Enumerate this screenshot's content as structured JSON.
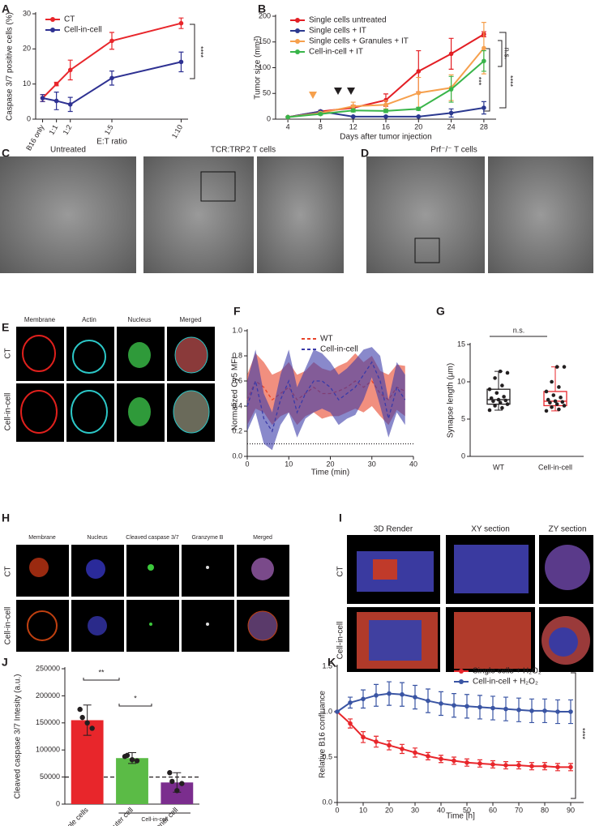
{
  "chart_data": [
    {
      "panel": "A",
      "type": "line",
      "x": [
        0,
        1,
        2,
        5,
        10
      ],
      "xlim": [
        -0.5,
        10.5
      ],
      "xticks": [
        {
          "value": 0,
          "label": "B16 only"
        },
        {
          "value": 1,
          "label": "1:1"
        },
        {
          "value": 2,
          "label": "1:2"
        },
        {
          "value": 5,
          "label": "1:5"
        },
        {
          "value": 10,
          "label": "1:10"
        }
      ],
      "ylim": [
        0,
        30
      ],
      "yticks": [
        0,
        10,
        20,
        30
      ],
      "xlabel": "E:T ratio",
      "ylabel": "Caspase 3/7 positive cells (%)",
      "markers": true,
      "error_style": "bars",
      "series": [
        {
          "name": "CT",
          "color": "#e8262b",
          "values": [
            6,
            10,
            14,
            22.3,
            27.3
          ],
          "errors": [
            1,
            0.5,
            2.8,
            2.4,
            1.5
          ]
        },
        {
          "name": "Cell-in-cell",
          "color": "#2e3192",
          "values": [
            6,
            5.2,
            4.2,
            11.7,
            16.3
          ],
          "errors": [
            1,
            2.5,
            2,
            2,
            2.8
          ]
        }
      ],
      "annotations": [
        "****"
      ]
    },
    {
      "panel": "B",
      "type": "line",
      "x": [
        4,
        8,
        12,
        16,
        20,
        24,
        28
      ],
      "xlim": [
        2.5,
        29.5
      ],
      "xticks": [
        4,
        8,
        12,
        16,
        20,
        24,
        28
      ],
      "ylim": [
        0,
        200
      ],
      "yticks": [
        0,
        50,
        100,
        150,
        200
      ],
      "xlabel": "Days after tumor injection",
      "ylabel": "Tumor size (mm²)",
      "markers": true,
      "error_style": "bars",
      "series": [
        {
          "name": "Single cells untreated",
          "color": "#e31e24",
          "values": [
            4,
            15,
            22,
            37,
            93,
            127,
            165
          ],
          "errors": [
            0,
            2,
            5,
            12,
            40,
            30,
            5
          ]
        },
        {
          "name": "Single cells + IT",
          "color": "#2b3990",
          "values": [
            4,
            15,
            5,
            5,
            5,
            12,
            22
          ],
          "errors": [
            0,
            2,
            1,
            1,
            1,
            8,
            12
          ]
        },
        {
          "name": "Single cells + Granules + IT",
          "color": "#f6a04d",
          "values": [
            4,
            12,
            25,
            28,
            51,
            61,
            138
          ],
          "errors": [
            0,
            2,
            8,
            8,
            30,
            25,
            50
          ]
        },
        {
          "name": "Cell-in-cell + IT",
          "color": "#39b54a",
          "values": [
            4,
            10,
            17,
            16,
            20,
            58,
            113
          ],
          "errors": [
            0,
            2,
            3,
            3,
            3,
            25,
            20
          ]
        }
      ],
      "annotations": [
        "n.s.",
        "****",
        "***"
      ]
    },
    {
      "panel": "F",
      "type": "line",
      "x": [
        0,
        2,
        4,
        6,
        8,
        10,
        12,
        14,
        16,
        18,
        20,
        22,
        24,
        26,
        28,
        30,
        32,
        34,
        36,
        38
      ],
      "xlim": [
        0,
        40
      ],
      "xticks": [
        0,
        10,
        20,
        30,
        40
      ],
      "ylim": [
        0,
        1
      ],
      "yticks": [
        {
          "value": 0,
          "label": "0.0"
        },
        0.2,
        0.4,
        0.6,
        0.8,
        {
          "value": 1,
          "label": "1.0"
        }
      ],
      "xlabel": "Time (min)",
      "ylabel": "Normalized Cy5 MFI",
      "markers": false,
      "dashed": true,
      "error_style": "band",
      "hline": 0.1,
      "series": [
        {
          "name": "WT",
          "color": "#e8442a",
          "values": [
            0.45,
            0.6,
            0.55,
            0.45,
            0.5,
            0.55,
            0.45,
            0.5,
            0.55,
            0.5,
            0.5,
            0.52,
            0.55,
            0.6,
            0.55,
            0.6,
            0.5,
            0.45,
            0.55,
            0.52
          ],
          "errors": [
            0.2,
            0.22,
            0.2,
            0.2,
            0.18,
            0.2,
            0.2,
            0.18,
            0.2,
            0.2,
            0.18,
            0.2,
            0.2,
            0.22,
            0.2,
            0.2,
            0.18,
            0.2,
            0.18,
            0.2
          ]
        },
        {
          "name": "Cell-in-cell",
          "color": "#3a3aa8",
          "values": [
            0.4,
            0.6,
            0.3,
            0.2,
            0.45,
            0.6,
            0.35,
            0.5,
            0.6,
            0.6,
            0.55,
            0.45,
            0.5,
            0.55,
            0.65,
            0.75,
            0.6,
            0.3,
            0.55,
            0.45
          ],
          "errors": [
            0.2,
            0.25,
            0.2,
            0.15,
            0.2,
            0.25,
            0.2,
            0.2,
            0.25,
            0.22,
            0.2,
            0.2,
            0.2,
            0.22,
            0.2,
            0.12,
            0.2,
            0.15,
            0.2,
            0.2
          ]
        }
      ]
    },
    {
      "panel": "G",
      "type": "box",
      "categories": [
        "WT",
        "Cell-in-cell"
      ],
      "ylim": [
        0,
        15
      ],
      "yticks": [
        0,
        5,
        10,
        15
      ],
      "ylabel": "Synapse length (μm)",
      "colors": [
        "#231f20",
        "#e8262b"
      ],
      "boxes": [
        {
          "min": 6.2,
          "q1": 7,
          "median": 7.6,
          "q3": 9,
          "max": 11.4,
          "points": [
            6.2,
            6.5,
            6.8,
            7,
            7.2,
            7.4,
            7.5,
            7.6,
            7.8,
            8,
            8.5,
            9,
            9.5,
            10.5,
            11.2,
            11.4
          ]
        },
        {
          "min": 6.1,
          "q1": 6.8,
          "median": 7.4,
          "q3": 8.7,
          "max": 12,
          "points": [
            6.1,
            6.3,
            6.6,
            6.8,
            7,
            7.2,
            7.3,
            7.4,
            7.6,
            7.9,
            8.2,
            8.7,
            9.3,
            10,
            12,
            12
          ]
        }
      ],
      "annotations": [
        "n.s."
      ]
    },
    {
      "panel": "J",
      "type": "bar",
      "categories": [
        "Single cells",
        "Outer cell",
        "Inner cell"
      ],
      "values": [
        155000,
        85000,
        40000
      ],
      "errors": [
        28000,
        10000,
        18000
      ],
      "colors": [
        "#e8262b",
        "#5bbb46",
        "#7b2d8e"
      ],
      "points": [
        [
          175000,
          140000,
          150000,
          160000
        ],
        [
          88000,
          80000,
          82000,
          90000
        ],
        [
          58000,
          38000,
          25000,
          42000
        ]
      ],
      "ylim": [
        0,
        250000
      ],
      "yticks": [
        0,
        50000,
        100000,
        150000,
        200000,
        250000
      ],
      "hline": 50000,
      "ylabel": "Cleaved caspase 3/7 Intesity (a.u.)",
      "group_label": "Cell-in-cell",
      "annotations": [
        "**",
        "*"
      ]
    },
    {
      "panel": "K",
      "type": "line",
      "x": [
        0,
        5,
        10,
        15,
        20,
        25,
        30,
        35,
        40,
        45,
        50,
        55,
        60,
        65,
        70,
        75,
        80,
        85,
        90
      ],
      "xlim": [
        0,
        95
      ],
      "xticks": [
        0,
        10,
        20,
        30,
        40,
        50,
        60,
        70,
        80,
        90
      ],
      "ylim": [
        0,
        1.5
      ],
      "yticks": [
        {
          "value": 0,
          "label": "0.0"
        },
        0.5,
        {
          "value": 1,
          "label": "1.0"
        },
        1.5
      ],
      "xlabel": "Time [h]",
      "ylabel": "Relative B16 confluance",
      "markers": true,
      "error_style": "bars",
      "series": [
        {
          "name": "Single cells + H₂O₂",
          "color": "#e8262b",
          "values": [
            1,
            0.87,
            0.72,
            0.67,
            0.63,
            0.59,
            0.55,
            0.51,
            0.48,
            0.46,
            0.44,
            0.43,
            0.42,
            0.41,
            0.41,
            0.4,
            0.4,
            0.39,
            0.39
          ],
          "errors": [
            0,
            0.05,
            0.06,
            0.06,
            0.05,
            0.05,
            0.05,
            0.04,
            0.04,
            0.04,
            0.04,
            0.04,
            0.04,
            0.04,
            0.04,
            0.04,
            0.04,
            0.04,
            0.04
          ]
        },
        {
          "name": "Cell-in-cell + H₂O₂",
          "color": "#3a55a4",
          "values": [
            1,
            1.1,
            1.14,
            1.18,
            1.2,
            1.19,
            1.16,
            1.12,
            1.09,
            1.07,
            1.06,
            1.05,
            1.04,
            1.03,
            1.02,
            1.01,
            1.01,
            1,
            1
          ],
          "errors": [
            0,
            0.06,
            0.1,
            0.12,
            0.13,
            0.13,
            0.13,
            0.13,
            0.13,
            0.13,
            0.13,
            0.13,
            0.13,
            0.13,
            0.13,
            0.13,
            0.13,
            0.13,
            0.13
          ]
        }
      ],
      "annotations": [
        "****"
      ]
    }
  ],
  "images": {
    "C": {
      "panel": "C",
      "labels": [
        "Untreated",
        "TCR:TRP2 T cells"
      ]
    },
    "D": {
      "panel": "D",
      "labels": [
        "Prf⁻/⁻ T cells"
      ]
    },
    "E": {
      "panel": "E",
      "columns": [
        "Membrane",
        "Actin",
        "Nucleus",
        "Merged"
      ],
      "rows": [
        "CT",
        "Cell-in-cell"
      ]
    },
    "H": {
      "panel": "H",
      "columns": [
        "Membrane",
        "Nucleus",
        "Cleaved caspase 3/7",
        "Granzyme B",
        "Merged"
      ],
      "rows": [
        "CT",
        "Cell-in-cell"
      ]
    },
    "I": {
      "panel": "I",
      "columns": [
        "3D Render",
        "XY section",
        "ZY section"
      ],
      "rows": [
        "CT",
        "Cell-in-cell"
      ]
    }
  }
}
